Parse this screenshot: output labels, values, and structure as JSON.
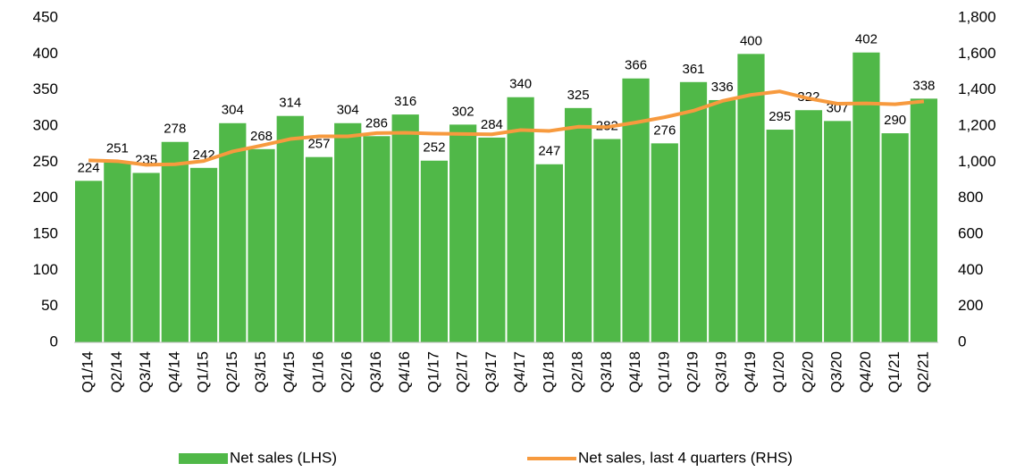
{
  "chart_data": {
    "type": "bar_line",
    "categories": [
      "Q1/14",
      "Q2/14",
      "Q3/14",
      "Q4/14",
      "Q1/15",
      "Q2/15",
      "Q3/15",
      "Q4/15",
      "Q1/16",
      "Q2/16",
      "Q3/16",
      "Q4/16",
      "Q1/17",
      "Q2/17",
      "Q3/17",
      "Q4/17",
      "Q1/18",
      "Q2/18",
      "Q3/18",
      "Q4/18",
      "Q1/19",
      "Q2/19",
      "Q3/19",
      "Q4/19",
      "Q1/20",
      "Q2/20",
      "Q3/20",
      "Q4/20",
      "Q1/21",
      "Q2/21"
    ],
    "series": [
      {
        "name": "Net sales (LHS)",
        "color": "#50b848",
        "type": "bar",
        "axis": "y",
        "values": [
          224,
          251,
          235,
          278,
          242,
          304,
          268,
          314,
          257,
          304,
          286,
          316,
          252,
          302,
          284,
          340,
          247,
          325,
          282,
          366,
          276,
          361,
          336,
          400,
          295,
          322,
          307,
          402,
          290,
          338
        ]
      },
      {
        "name": "Net sales, last 4 quarters (RHS)",
        "color": "#f79a3e",
        "type": "line",
        "axis": "y2",
        "values": [
          1010,
          1005,
          985,
          988,
          1006,
          1059,
          1092,
          1128,
          1143,
          1143,
          1161,
          1163,
          1158,
          1156,
          1154,
          1178,
          1173,
          1196,
          1194,
          1220,
          1249,
          1285,
          1339,
          1373,
          1392,
          1353,
          1324,
          1326,
          1321,
          1337
        ]
      }
    ],
    "ylim": [
      0,
      450
    ],
    "yticks": [
      0,
      50,
      100,
      150,
      200,
      250,
      300,
      350,
      400,
      450
    ],
    "y2lim": [
      0,
      1800
    ],
    "y2ticks": [
      0,
      200,
      400,
      600,
      800,
      {
        "value": 1000,
        "label": "1,000"
      },
      {
        "value": 1200,
        "label": "1,200"
      },
      {
        "value": 1400,
        "label": "1,400"
      },
      {
        "value": 1600,
        "label": "1,600"
      },
      {
        "value": 1800,
        "label": "1,800"
      }
    ],
    "legend": "bottom"
  }
}
